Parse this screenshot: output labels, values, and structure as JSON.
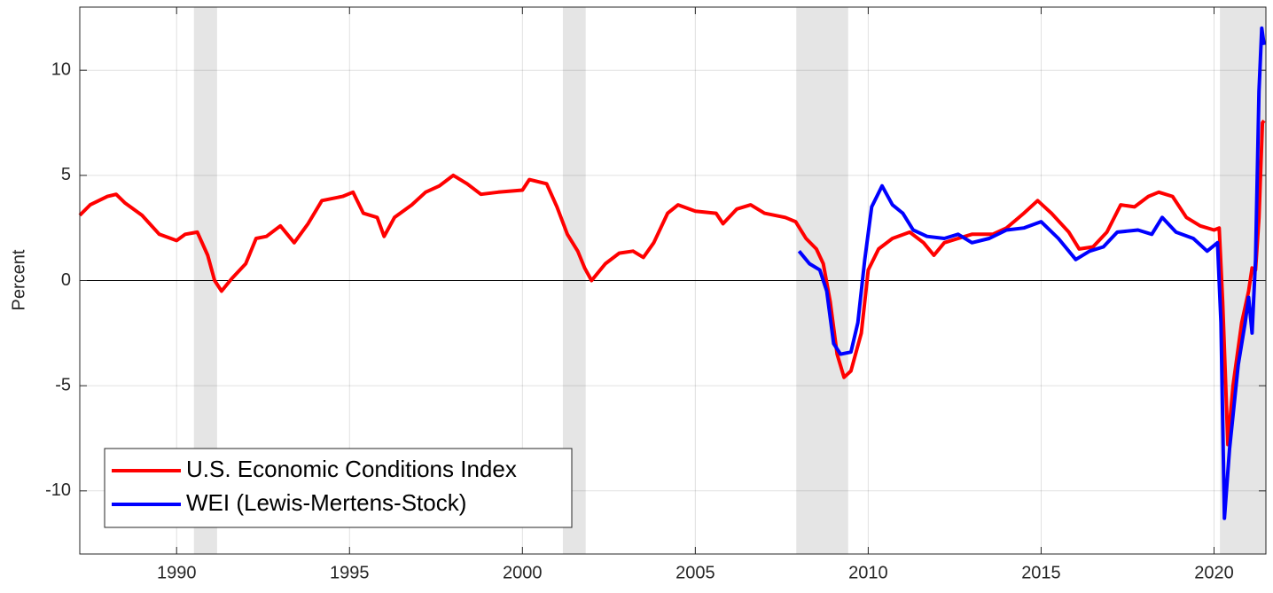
{
  "chart_data": {
    "type": "line",
    "y_label": "Percent",
    "xlim": [
      1987.2,
      2021.5
    ],
    "ylim": [
      -13,
      13
    ],
    "xticks": [
      1990,
      1995,
      2000,
      2005,
      2010,
      2015,
      2020
    ],
    "yticks": [
      -10,
      -5,
      0,
      5,
      10
    ],
    "grid": true,
    "legend": "lower left",
    "shaded_regions": [
      [
        1990.5,
        1991.17
      ],
      [
        2001.17,
        2001.83
      ],
      [
        2007.92,
        2009.42
      ],
      [
        2020.17,
        2021.5
      ]
    ],
    "series": [
      {
        "name": "U.S. Economic Conditions Index",
        "color": "#ff0000",
        "x": [
          1987.2,
          1987.5,
          1988,
          1988.25,
          1988.5,
          1989,
          1989.5,
          1990,
          1990.25,
          1990.6,
          1990.9,
          1991.1,
          1991.3,
          1991.6,
          1992,
          1992.3,
          1992.6,
          1993,
          1993.4,
          1993.8,
          1994.2,
          1994.8,
          1995.1,
          1995.4,
          1995.8,
          1996,
          1996.3,
          1996.8,
          1997.2,
          1997.6,
          1998,
          1998.4,
          1998.8,
          1999.3,
          2000,
          2000.2,
          2000.7,
          2001,
          2001.3,
          2001.6,
          2001.8,
          2002,
          2002.4,
          2002.8,
          2003.2,
          2003.5,
          2003.8,
          2004.2,
          2004.5,
          2005,
          2005.6,
          2005.8,
          2006.2,
          2006.6,
          2007,
          2007.6,
          2007.9,
          2008.2,
          2008.5,
          2008.7,
          2008.9,
          2009.1,
          2009.3,
          2009.5,
          2009.8,
          2010,
          2010.3,
          2010.7,
          2011.2,
          2011.6,
          2011.9,
          2012.2,
          2012.6,
          2013,
          2013.6,
          2014,
          2014.5,
          2014.9,
          2015.3,
          2015.8,
          2016.1,
          2016.5,
          2016.9,
          2017.3,
          2017.7,
          2018.1,
          2018.4,
          2018.8,
          2019.2,
          2019.6,
          2020,
          2020.15,
          2020.25,
          2020.4,
          2020.55,
          2020.8,
          2021,
          2021.1,
          2021.2,
          2021.3,
          2021.4,
          2021.45
        ],
        "values": [
          3.1,
          3.6,
          4.0,
          4.1,
          3.7,
          3.1,
          2.2,
          1.9,
          2.2,
          2.3,
          1.2,
          0.0,
          -0.5,
          0.1,
          0.8,
          2.0,
          2.1,
          2.6,
          1.8,
          2.7,
          3.8,
          4.0,
          4.2,
          3.2,
          3.0,
          2.1,
          3.0,
          3.6,
          4.2,
          4.5,
          5.0,
          4.6,
          4.1,
          4.2,
          4.3,
          4.8,
          4.6,
          3.5,
          2.2,
          1.4,
          0.6,
          0.0,
          0.8,
          1.3,
          1.4,
          1.1,
          1.8,
          3.2,
          3.6,
          3.3,
          3.2,
          2.7,
          3.4,
          3.6,
          3.2,
          3.0,
          2.8,
          2.0,
          1.5,
          0.8,
          -1.0,
          -3.5,
          -4.6,
          -4.3,
          -2.5,
          0.5,
          1.5,
          2.0,
          2.3,
          1.8,
          1.2,
          1.8,
          2.0,
          2.2,
          2.2,
          2.5,
          3.2,
          3.8,
          3.2,
          2.3,
          1.5,
          1.6,
          2.3,
          3.6,
          3.5,
          4.0,
          4.2,
          4.0,
          3.0,
          2.6,
          2.4,
          2.5,
          -1.0,
          -7.8,
          -5.0,
          -2.0,
          -0.5,
          0.6,
          0.5,
          3.0,
          7.5,
          7.6
        ]
      },
      {
        "name": "WEI (Lewis-Mertens-Stock)",
        "color": "#0000ff",
        "x": [
          2008,
          2008.3,
          2008.6,
          2008.8,
          2009,
          2009.2,
          2009.5,
          2009.7,
          2009.9,
          2010.1,
          2010.4,
          2010.7,
          2011,
          2011.3,
          2011.7,
          2012.2,
          2012.6,
          2013,
          2013.5,
          2014,
          2014.5,
          2015,
          2015.5,
          2016,
          2016.4,
          2016.8,
          2017.2,
          2017.8,
          2018.2,
          2018.5,
          2018.9,
          2019.4,
          2019.8,
          2020.1,
          2020.2,
          2020.3,
          2020.45,
          2020.7,
          2020.9,
          2021,
          2021.1,
          2021.2,
          2021.3,
          2021.38,
          2021.45
        ],
        "values": [
          1.4,
          0.8,
          0.5,
          -0.5,
          -3.0,
          -3.5,
          -3.4,
          -2.0,
          1.0,
          3.5,
          4.5,
          3.6,
          3.2,
          2.4,
          2.1,
          2.0,
          2.2,
          1.8,
          2.0,
          2.4,
          2.5,
          2.8,
          2.0,
          1.0,
          1.4,
          1.6,
          2.3,
          2.4,
          2.2,
          3.0,
          2.3,
          2.0,
          1.4,
          1.8,
          -2.0,
          -11.3,
          -8.0,
          -4.0,
          -2.0,
          -0.8,
          -2.5,
          1.0,
          9.0,
          12.0,
          11.2
        ]
      }
    ]
  }
}
